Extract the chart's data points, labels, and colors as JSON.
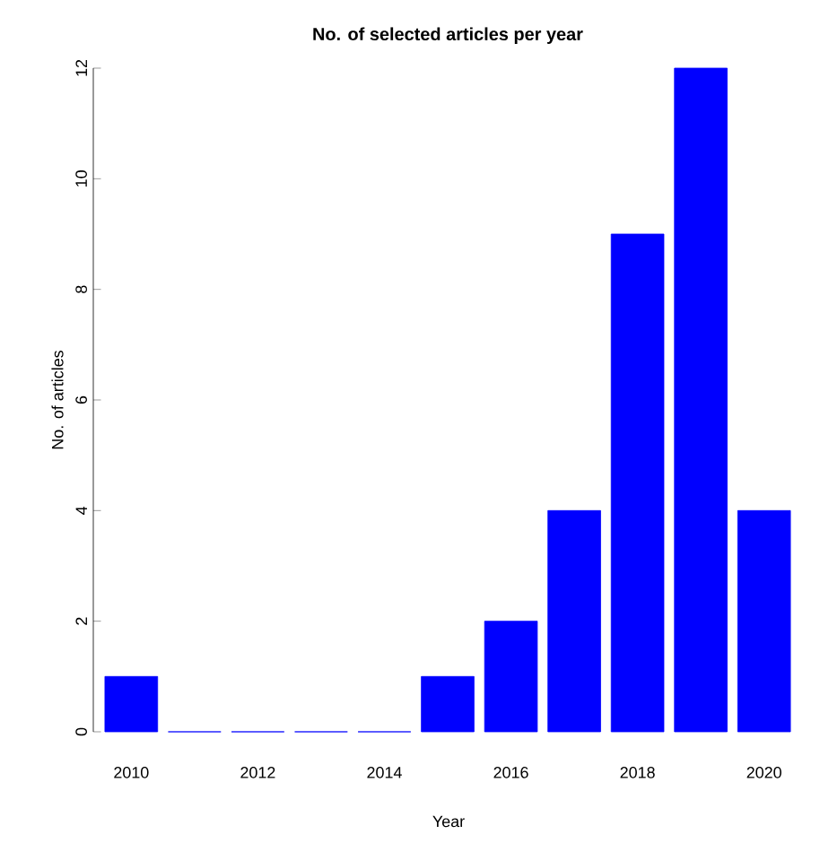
{
  "chart_data": {
    "type": "bar",
    "title": "No. of selected articles per year",
    "xlabel": "Year",
    "ylabel": "No. of articles",
    "categories": [
      "2010",
      null,
      "2012",
      null,
      "2014",
      null,
      "2016",
      null,
      "2018",
      null,
      "2020"
    ],
    "values": [
      1,
      0,
      0,
      0,
      0,
      1,
      2,
      4,
      9,
      12,
      4
    ],
    "color": "#0000ff",
    "ylim": [
      0,
      12
    ],
    "yticks": [
      0,
      2,
      4,
      6,
      8,
      10,
      12
    ]
  }
}
